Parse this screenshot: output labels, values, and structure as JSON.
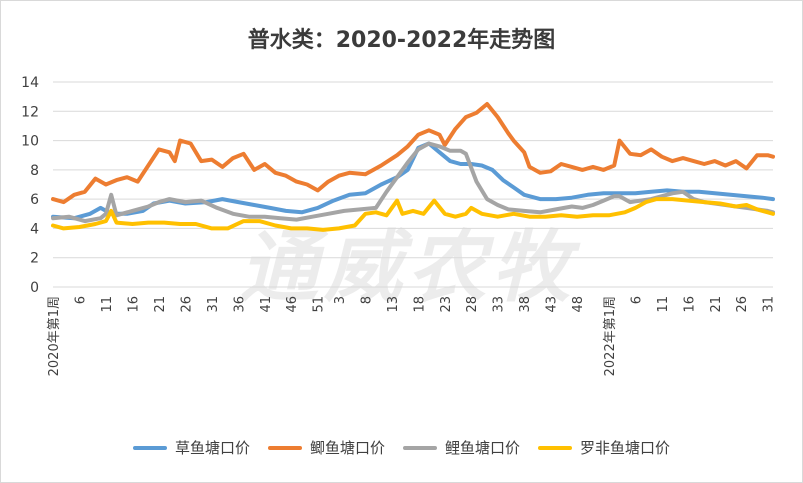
{
  "chart_data": {
    "type": "line",
    "title": "普水类：2020-2022年走势图",
    "ylim": [
      0,
      14
    ],
    "yticks": [
      0,
      2,
      4,
      6,
      8,
      10,
      12,
      14
    ],
    "xtick_labels": [
      "2020年第1周",
      "6",
      "11",
      "16",
      "21",
      "26",
      "31",
      "36",
      "41",
      "46",
      "51",
      "3",
      "8",
      "13",
      "18",
      "23",
      "28",
      "33",
      "38",
      "43",
      "48",
      "2022年第1周",
      "6",
      "11",
      "16",
      "21",
      "26",
      "31"
    ],
    "x_positions_weeks": [
      1,
      6,
      11,
      16,
      21,
      26,
      31,
      36,
      41,
      46,
      51,
      55,
      60,
      65,
      70,
      75,
      80,
      85,
      90,
      95,
      100,
      106,
      111,
      116,
      121,
      126,
      131,
      136
    ],
    "x_range_weeks": [
      1,
      137
    ],
    "legend_position": "bottom",
    "grid": true,
    "series": [
      {
        "name": "草鱼塘口价",
        "color": "#5B9BD5",
        "points": [
          [
            1,
            4.8
          ],
          [
            5,
            4.7
          ],
          [
            8,
            5.0
          ],
          [
            10,
            5.4
          ],
          [
            12,
            5.0
          ],
          [
            15,
            5.0
          ],
          [
            18,
            5.2
          ],
          [
            20,
            5.7
          ],
          [
            23,
            5.9
          ],
          [
            26,
            5.7
          ],
          [
            30,
            5.8
          ],
          [
            33,
            6.0
          ],
          [
            36,
            5.8
          ],
          [
            39,
            5.6
          ],
          [
            42,
            5.4
          ],
          [
            45,
            5.2
          ],
          [
            48,
            5.1
          ],
          [
            51,
            5.4
          ],
          [
            54,
            5.9
          ],
          [
            57,
            6.3
          ],
          [
            60,
            6.4
          ],
          [
            63,
            7.0
          ],
          [
            66,
            7.5
          ],
          [
            68,
            8.0
          ],
          [
            70,
            9.5
          ],
          [
            72,
            9.8
          ],
          [
            74,
            9.2
          ],
          [
            76,
            8.6
          ],
          [
            78,
            8.4
          ],
          [
            80,
            8.4
          ],
          [
            82,
            8.3
          ],
          [
            84,
            8.0
          ],
          [
            86,
            7.3
          ],
          [
            88,
            6.8
          ],
          [
            90,
            6.3
          ],
          [
            93,
            6.0
          ],
          [
            96,
            6.0
          ],
          [
            99,
            6.1
          ],
          [
            102,
            6.3
          ],
          [
            105,
            6.4
          ],
          [
            108,
            6.4
          ],
          [
            111,
            6.4
          ],
          [
            114,
            6.5
          ],
          [
            117,
            6.6
          ],
          [
            120,
            6.5
          ],
          [
            123,
            6.5
          ],
          [
            126,
            6.4
          ],
          [
            129,
            6.3
          ],
          [
            132,
            6.2
          ],
          [
            135,
            6.1
          ],
          [
            137,
            6.0
          ]
        ]
      },
      {
        "name": "鲫鱼塘口价",
        "color": "#ED7D31",
        "points": [
          [
            1,
            6.0
          ],
          [
            3,
            5.8
          ],
          [
            5,
            6.3
          ],
          [
            7,
            6.5
          ],
          [
            9,
            7.4
          ],
          [
            11,
            7.0
          ],
          [
            13,
            7.3
          ],
          [
            15,
            7.5
          ],
          [
            17,
            7.2
          ],
          [
            19,
            8.3
          ],
          [
            21,
            9.4
          ],
          [
            23,
            9.2
          ],
          [
            24,
            8.6
          ],
          [
            25,
            10.0
          ],
          [
            27,
            9.8
          ],
          [
            29,
            8.6
          ],
          [
            31,
            8.7
          ],
          [
            33,
            8.2
          ],
          [
            35,
            8.8
          ],
          [
            37,
            9.1
          ],
          [
            39,
            8.0
          ],
          [
            41,
            8.4
          ],
          [
            43,
            7.8
          ],
          [
            45,
            7.6
          ],
          [
            47,
            7.2
          ],
          [
            49,
            7.0
          ],
          [
            51,
            6.6
          ],
          [
            53,
            7.2
          ],
          [
            55,
            7.6
          ],
          [
            57,
            7.8
          ],
          [
            60,
            7.7
          ],
          [
            63,
            8.3
          ],
          [
            66,
            9.0
          ],
          [
            68,
            9.6
          ],
          [
            70,
            10.4
          ],
          [
            72,
            10.7
          ],
          [
            74,
            10.4
          ],
          [
            75,
            9.7
          ],
          [
            77,
            10.8
          ],
          [
            79,
            11.6
          ],
          [
            81,
            11.9
          ],
          [
            83,
            12.5
          ],
          [
            85,
            11.6
          ],
          [
            87,
            10.5
          ],
          [
            88,
            10.0
          ],
          [
            90,
            9.2
          ],
          [
            91,
            8.2
          ],
          [
            93,
            7.8
          ],
          [
            95,
            7.9
          ],
          [
            97,
            8.4
          ],
          [
            99,
            8.2
          ],
          [
            101,
            8.0
          ],
          [
            103,
            8.2
          ],
          [
            105,
            8.0
          ],
          [
            107,
            8.3
          ],
          [
            108,
            10.0
          ],
          [
            110,
            9.1
          ],
          [
            112,
            9.0
          ],
          [
            114,
            9.4
          ],
          [
            116,
            8.9
          ],
          [
            118,
            8.6
          ],
          [
            120,
            8.8
          ],
          [
            122,
            8.6
          ],
          [
            124,
            8.4
          ],
          [
            126,
            8.6
          ],
          [
            128,
            8.3
          ],
          [
            130,
            8.6
          ],
          [
            132,
            8.1
          ],
          [
            134,
            9.0
          ],
          [
            136,
            9.0
          ],
          [
            137,
            8.9
          ]
        ]
      },
      {
        "name": "鲤鱼塘口价",
        "color": "#A5A5A5",
        "points": [
          [
            1,
            4.7
          ],
          [
            4,
            4.8
          ],
          [
            7,
            4.5
          ],
          [
            10,
            4.7
          ],
          [
            11,
            5.0
          ],
          [
            12,
            6.3
          ],
          [
            13,
            4.9
          ],
          [
            16,
            5.2
          ],
          [
            19,
            5.5
          ],
          [
            21,
            5.8
          ],
          [
            23,
            6.0
          ],
          [
            26,
            5.8
          ],
          [
            29,
            5.9
          ],
          [
            32,
            5.4
          ],
          [
            35,
            5.0
          ],
          [
            38,
            4.8
          ],
          [
            41,
            4.8
          ],
          [
            44,
            4.7
          ],
          [
            47,
            4.6
          ],
          [
            50,
            4.8
          ],
          [
            53,
            5.0
          ],
          [
            56,
            5.2
          ],
          [
            59,
            5.3
          ],
          [
            62,
            5.4
          ],
          [
            64,
            6.5
          ],
          [
            66,
            7.5
          ],
          [
            68,
            8.5
          ],
          [
            70,
            9.4
          ],
          [
            72,
            9.8
          ],
          [
            74,
            9.6
          ],
          [
            76,
            9.3
          ],
          [
            78,
            9.3
          ],
          [
            79,
            9.1
          ],
          [
            81,
            7.2
          ],
          [
            83,
            6.0
          ],
          [
            85,
            5.6
          ],
          [
            87,
            5.3
          ],
          [
            90,
            5.2
          ],
          [
            93,
            5.1
          ],
          [
            96,
            5.3
          ],
          [
            99,
            5.5
          ],
          [
            101,
            5.4
          ],
          [
            103,
            5.6
          ],
          [
            105,
            5.9
          ],
          [
            107,
            6.2
          ],
          [
            108,
            6.2
          ],
          [
            110,
            5.8
          ],
          [
            112,
            5.9
          ],
          [
            114,
            6.0
          ],
          [
            116,
            6.2
          ],
          [
            118,
            6.4
          ],
          [
            120,
            6.5
          ],
          [
            122,
            6.0
          ],
          [
            124,
            5.8
          ],
          [
            126,
            5.7
          ],
          [
            128,
            5.6
          ],
          [
            130,
            5.5
          ],
          [
            132,
            5.4
          ],
          [
            134,
            5.3
          ],
          [
            136,
            5.2
          ],
          [
            137,
            5.1
          ]
        ]
      },
      {
        "name": "罗非鱼塘口价",
        "color": "#FFC000",
        "points": [
          [
            1,
            4.2
          ],
          [
            3,
            4.0
          ],
          [
            6,
            4.1
          ],
          [
            9,
            4.3
          ],
          [
            11,
            4.5
          ],
          [
            12,
            5.2
          ],
          [
            13,
            4.4
          ],
          [
            16,
            4.3
          ],
          [
            19,
            4.4
          ],
          [
            22,
            4.4
          ],
          [
            25,
            4.3
          ],
          [
            28,
            4.3
          ],
          [
            31,
            4.0
          ],
          [
            34,
            4.0
          ],
          [
            37,
            4.5
          ],
          [
            40,
            4.5
          ],
          [
            43,
            4.2
          ],
          [
            46,
            4.0
          ],
          [
            49,
            4.0
          ],
          [
            52,
            3.9
          ],
          [
            55,
            4.0
          ],
          [
            58,
            4.2
          ],
          [
            60,
            5.0
          ],
          [
            62,
            5.1
          ],
          [
            64,
            4.9
          ],
          [
            66,
            5.9
          ],
          [
            67,
            5.0
          ],
          [
            69,
            5.2
          ],
          [
            71,
            5.0
          ],
          [
            73,
            5.9
          ],
          [
            75,
            5.0
          ],
          [
            77,
            4.8
          ],
          [
            79,
            5.0
          ],
          [
            80,
            5.4
          ],
          [
            82,
            5.0
          ],
          [
            85,
            4.8
          ],
          [
            88,
            5.0
          ],
          [
            91,
            4.8
          ],
          [
            94,
            4.8
          ],
          [
            97,
            4.9
          ],
          [
            100,
            4.8
          ],
          [
            103,
            4.9
          ],
          [
            106,
            4.9
          ],
          [
            109,
            5.1
          ],
          [
            111,
            5.4
          ],
          [
            113,
            5.8
          ],
          [
            115,
            6.0
          ],
          [
            118,
            6.0
          ],
          [
            121,
            5.9
          ],
          [
            124,
            5.8
          ],
          [
            127,
            5.7
          ],
          [
            130,
            5.5
          ],
          [
            132,
            5.6
          ],
          [
            134,
            5.3
          ],
          [
            136,
            5.1
          ],
          [
            137,
            5.0
          ]
        ]
      }
    ]
  },
  "watermark": "通威农牧"
}
